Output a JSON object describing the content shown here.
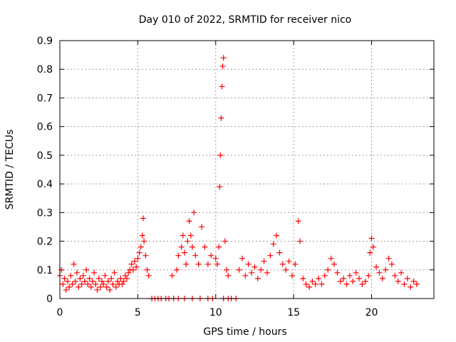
{
  "chart_data": {
    "type": "scatter",
    "title": "Day 010 of 2022, SRMTID for receiver nico",
    "xlabel": "GPS time / hours",
    "ylabel": "SRMTID / TECUs",
    "xlim": [
      0,
      24
    ],
    "ylim": [
      0,
      0.9
    ],
    "x_ticks": [
      0,
      5,
      10,
      15,
      20
    ],
    "x_tick_labels": [
      "0",
      "5",
      "10",
      "15",
      "20"
    ],
    "y_ticks": [
      0,
      0.1,
      0.2,
      0.3,
      0.4,
      0.5,
      0.6,
      0.7,
      0.8,
      0.9
    ],
    "y_tick_labels": [
      "0",
      "0.1",
      "0.2",
      "0.3",
      "0.4",
      "0.5",
      "0.6",
      "0.7",
      "0.8",
      "0.9"
    ],
    "grid": true,
    "marker": "+",
    "color": "#ff0000",
    "series": [
      {
        "name": "SRMTID",
        "points": [
          [
            0.0,
            0.08
          ],
          [
            0.1,
            0.1
          ],
          [
            0.2,
            0.05
          ],
          [
            0.3,
            0.07
          ],
          [
            0.4,
            0.03
          ],
          [
            0.5,
            0.06
          ],
          [
            0.6,
            0.04
          ],
          [
            0.7,
            0.08
          ],
          [
            0.8,
            0.05
          ],
          [
            0.9,
            0.12
          ],
          [
            1.0,
            0.06
          ],
          [
            1.1,
            0.09
          ],
          [
            1.2,
            0.04
          ],
          [
            1.3,
            0.07
          ],
          [
            1.4,
            0.05
          ],
          [
            1.5,
            0.08
          ],
          [
            1.6,
            0.06
          ],
          [
            1.7,
            0.1
          ],
          [
            1.8,
            0.05
          ],
          [
            1.9,
            0.07
          ],
          [
            2.0,
            0.04
          ],
          [
            2.1,
            0.06
          ],
          [
            2.2,
            0.09
          ],
          [
            2.3,
            0.05
          ],
          [
            2.4,
            0.03
          ],
          [
            2.5,
            0.07
          ],
          [
            2.6,
            0.04
          ],
          [
            2.7,
            0.06
          ],
          [
            2.8,
            0.05
          ],
          [
            2.9,
            0.08
          ],
          [
            3.0,
            0.04
          ],
          [
            3.1,
            0.06
          ],
          [
            3.2,
            0.03
          ],
          [
            3.3,
            0.07
          ],
          [
            3.4,
            0.05
          ],
          [
            3.5,
            0.09
          ],
          [
            3.6,
            0.04
          ],
          [
            3.7,
            0.06
          ],
          [
            3.8,
            0.05
          ],
          [
            3.9,
            0.07
          ],
          [
            4.0,
            0.05
          ],
          [
            4.1,
            0.06
          ],
          [
            4.2,
            0.08
          ],
          [
            4.3,
            0.07
          ],
          [
            4.4,
            0.09
          ],
          [
            4.5,
            0.1
          ],
          [
            4.6,
            0.12
          ],
          [
            4.7,
            0.1
          ],
          [
            4.8,
            0.13
          ],
          [
            4.9,
            0.11
          ],
          [
            5.0,
            0.14
          ],
          [
            5.1,
            0.16
          ],
          [
            5.2,
            0.18
          ],
          [
            5.3,
            0.22
          ],
          [
            5.35,
            0.28
          ],
          [
            5.4,
            0.2
          ],
          [
            5.5,
            0.15
          ],
          [
            5.6,
            0.1
          ],
          [
            5.7,
            0.08
          ],
          [
            5.9,
            0.0
          ],
          [
            6.1,
            0.0
          ],
          [
            6.3,
            0.0
          ],
          [
            6.5,
            0.0
          ],
          [
            6.8,
            0.0
          ],
          [
            7.0,
            0.0
          ],
          [
            7.3,
            0.0
          ],
          [
            7.6,
            0.0
          ],
          [
            7.2,
            0.08
          ],
          [
            7.5,
            0.1
          ],
          [
            7.6,
            0.15
          ],
          [
            7.8,
            0.18
          ],
          [
            7.9,
            0.22
          ],
          [
            8.0,
            0.16
          ],
          [
            8.1,
            0.12
          ],
          [
            8.2,
            0.2
          ],
          [
            8.3,
            0.27
          ],
          [
            8.4,
            0.22
          ],
          [
            8.5,
            0.18
          ],
          [
            8.6,
            0.3
          ],
          [
            8.7,
            0.15
          ],
          [
            8.9,
            0.12
          ],
          [
            9.1,
            0.25
          ],
          [
            9.3,
            0.18
          ],
          [
            9.5,
            0.12
          ],
          [
            9.7,
            0.15
          ],
          [
            8.0,
            0.0
          ],
          [
            8.5,
            0.0
          ],
          [
            9.0,
            0.0
          ],
          [
            9.5,
            0.0
          ],
          [
            9.8,
            0.0
          ],
          [
            10.0,
            0.14
          ],
          [
            10.1,
            0.12
          ],
          [
            10.2,
            0.18
          ],
          [
            10.25,
            0.39
          ],
          [
            10.3,
            0.5
          ],
          [
            10.35,
            0.63
          ],
          [
            10.4,
            0.74
          ],
          [
            10.45,
            0.81
          ],
          [
            10.5,
            0.84
          ],
          [
            10.6,
            0.2
          ],
          [
            10.7,
            0.1
          ],
          [
            10.8,
            0.08
          ],
          [
            10.5,
            0.0
          ],
          [
            10.8,
            0.0
          ],
          [
            11.0,
            0.0
          ],
          [
            11.3,
            0.0
          ],
          [
            11.5,
            0.1
          ],
          [
            11.7,
            0.14
          ],
          [
            11.9,
            0.08
          ],
          [
            12.1,
            0.12
          ],
          [
            12.3,
            0.09
          ],
          [
            12.5,
            0.11
          ],
          [
            12.7,
            0.07
          ],
          [
            12.9,
            0.1
          ],
          [
            13.1,
            0.13
          ],
          [
            13.3,
            0.09
          ],
          [
            13.5,
            0.15
          ],
          [
            13.7,
            0.19
          ],
          [
            13.9,
            0.22
          ],
          [
            14.1,
            0.16
          ],
          [
            14.3,
            0.12
          ],
          [
            14.5,
            0.1
          ],
          [
            14.7,
            0.13
          ],
          [
            14.9,
            0.08
          ],
          [
            15.1,
            0.12
          ],
          [
            15.3,
            0.27
          ],
          [
            15.4,
            0.2
          ],
          [
            15.6,
            0.07
          ],
          [
            15.8,
            0.05
          ],
          [
            16.0,
            0.04
          ],
          [
            16.2,
            0.06
          ],
          [
            16.4,
            0.05
          ],
          [
            16.6,
            0.07
          ],
          [
            16.8,
            0.05
          ],
          [
            17.0,
            0.08
          ],
          [
            17.2,
            0.1
          ],
          [
            17.4,
            0.14
          ],
          [
            17.6,
            0.12
          ],
          [
            17.8,
            0.09
          ],
          [
            18.0,
            0.06
          ],
          [
            18.2,
            0.07
          ],
          [
            18.4,
            0.05
          ],
          [
            18.6,
            0.08
          ],
          [
            18.8,
            0.06
          ],
          [
            19.0,
            0.09
          ],
          [
            19.2,
            0.07
          ],
          [
            19.4,
            0.05
          ],
          [
            19.6,
            0.06
          ],
          [
            19.8,
            0.08
          ],
          [
            19.9,
            0.16
          ],
          [
            20.0,
            0.21
          ],
          [
            20.1,
            0.18
          ],
          [
            20.3,
            0.11
          ],
          [
            20.5,
            0.09
          ],
          [
            20.7,
            0.07
          ],
          [
            20.9,
            0.1
          ],
          [
            21.1,
            0.14
          ],
          [
            21.3,
            0.12
          ],
          [
            21.5,
            0.08
          ],
          [
            21.7,
            0.06
          ],
          [
            21.9,
            0.09
          ],
          [
            22.1,
            0.05
          ],
          [
            22.3,
            0.07
          ],
          [
            22.5,
            0.04
          ],
          [
            22.7,
            0.06
          ],
          [
            22.9,
            0.05
          ]
        ]
      }
    ]
  }
}
